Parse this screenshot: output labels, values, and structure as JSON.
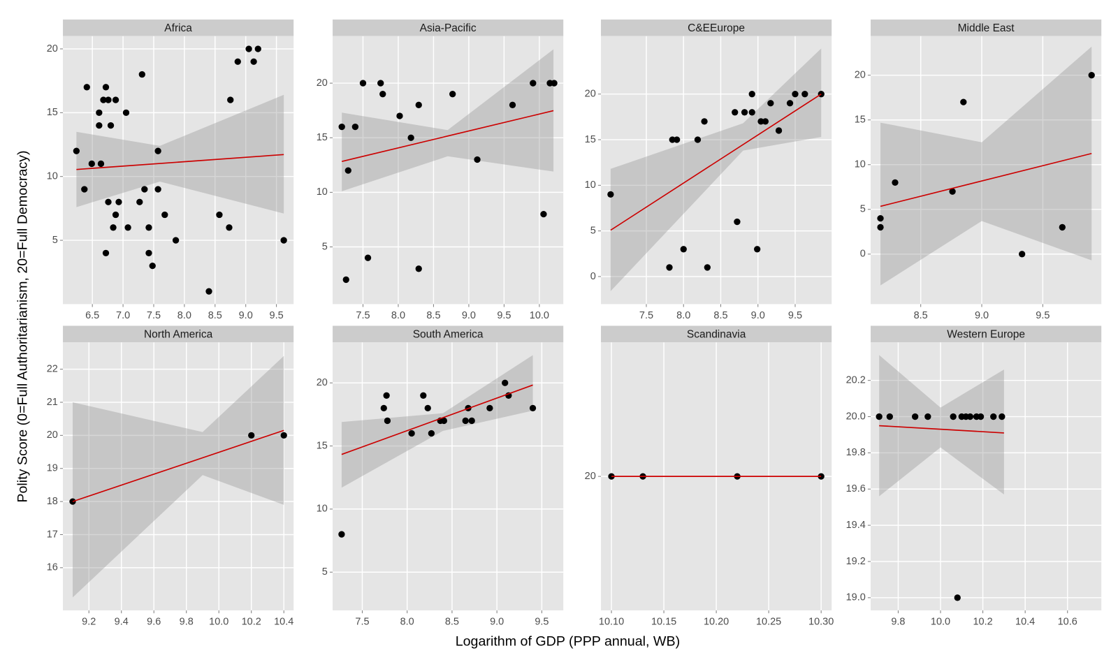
{
  "ylabel": "Polity Score (0=Full Authoritarianism, 20=Full Democracy)",
  "xlabel": "Logarithm of GDP (PPP annual, WB)",
  "chart_data": [
    {
      "type": "scatter",
      "title": "Africa",
      "color": "#000000",
      "x": [
        6.24,
        6.37,
        6.41,
        6.49,
        6.61,
        6.61,
        6.64,
        6.68,
        6.72,
        6.72,
        6.76,
        6.76,
        6.8,
        6.84,
        6.88,
        6.88,
        6.93,
        7.05,
        7.08,
        7.27,
        7.31,
        7.35,
        7.42,
        7.42,
        7.48,
        7.57,
        7.57,
        7.68,
        7.86,
        8.4,
        8.57,
        8.73,
        8.75,
        8.87,
        9.05,
        9.13,
        9.2,
        9.62
      ],
      "values": [
        12,
        9,
        17,
        11,
        15,
        14,
        11,
        16,
        17,
        4,
        16,
        8,
        14,
        6,
        7,
        16,
        8,
        15,
        6,
        8,
        18,
        9,
        6,
        4,
        3,
        12,
        9,
        7,
        5,
        1,
        7,
        6,
        16,
        19,
        20,
        19,
        20,
        5
      ],
      "fit": {
        "color": "#cc0000",
        "x": [
          6.24,
          9.62
        ],
        "y": [
          10.55,
          11.72
        ]
      },
      "band": {
        "x": [
          6.24,
          7.6,
          9.62
        ],
        "lower": [
          7.6,
          9.6,
          7.1
        ],
        "upper": [
          13.5,
          12.4,
          16.4
        ]
      },
      "xlim": [
        6.02,
        9.78
      ],
      "ylim": [
        0,
        21
      ],
      "xticks": [
        6.5,
        {
          "value": 7,
          "label": "7.0"
        },
        7.5,
        {
          "value": 8,
          "label": "8.0"
        },
        8.5,
        {
          "value": 9,
          "label": "9.0"
        },
        9.5
      ],
      "yticks": [
        5,
        10,
        15,
        20
      ]
    },
    {
      "type": "scatter",
      "title": "Asia-Pacific",
      "color": "#000000",
      "x": [
        7.2,
        7.26,
        7.29,
        7.39,
        7.5,
        7.57,
        7.75,
        7.78,
        8.02,
        8.18,
        8.29,
        8.29,
        8.77,
        9.12,
        9.62,
        9.91,
        10.06,
        10.15,
        10.21
      ],
      "values": [
        16,
        2,
        12,
        16,
        20,
        4,
        20,
        19,
        17,
        15,
        18,
        3,
        19,
        13,
        18,
        20,
        8,
        20,
        20
      ],
      "fit": {
        "color": "#cc0000",
        "x": [
          7.2,
          10.2
        ],
        "y": [
          12.83,
          17.48
        ]
      },
      "band": {
        "x": [
          7.2,
          8.7,
          10.2
        ],
        "lower": [
          10.1,
          13.3,
          11.9
        ],
        "upper": [
          17.3,
          15.7,
          23.1
        ]
      },
      "xlim": [
        7.07,
        10.34
      ],
      "ylim": [
        -0.24,
        24.31
      ],
      "xticks": [
        7.5,
        {
          "value": 8,
          "label": "8.0"
        },
        8.5,
        {
          "value": 9,
          "label": "9.0"
        },
        9.5,
        {
          "value": 10,
          "label": "10.0"
        }
      ],
      "yticks": [
        5,
        10,
        15,
        20
      ]
    },
    {
      "type": "scatter",
      "title": "C&EEurope",
      "color": "#000000",
      "x": [
        7.02,
        7.81,
        7.85,
        7.91,
        8.0,
        8.19,
        8.28,
        8.32,
        8.69,
        8.72,
        8.82,
        8.92,
        8.92,
        8.99,
        9.04,
        9.1,
        9.17,
        9.28,
        9.43,
        9.5,
        9.63,
        9.85
      ],
      "values": [
        9,
        1,
        15,
        15,
        3,
        15,
        17,
        1,
        18,
        6,
        18,
        20,
        18,
        3,
        17,
        17,
        19,
        16,
        19,
        20,
        20,
        20
      ],
      "fit": {
        "color": "#cc0000",
        "x": [
          7.02,
          9.85
        ],
        "y": [
          5.08,
          20
        ]
      },
      "band": {
        "x": [
          7.02,
          8.8,
          9.85
        ],
        "lower": [
          -1.6,
          13.8,
          15.3
        ],
        "upper": [
          11.8,
          16.8,
          25
        ]
      },
      "xlim": [
        6.89,
        9.99
      ],
      "ylim": [
        -3.02,
        26.35
      ],
      "xticks": [
        7.5,
        {
          "value": 8,
          "label": "8.0"
        },
        8.5,
        {
          "value": 9,
          "label": "9.0"
        },
        9.5
      ],
      "yticks": [
        0,
        5,
        10,
        15,
        20
      ]
    },
    {
      "type": "scatter",
      "title": "Middle East",
      "color": "#000000",
      "x": [
        8.17,
        8.17,
        8.29,
        8.76,
        8.85,
        9.33,
        9.66,
        9.9
      ],
      "values": [
        4,
        3,
        8,
        7,
        17,
        0,
        3,
        20
      ],
      "fit": {
        "color": "#cc0000",
        "x": [
          8.17,
          9.9
        ],
        "y": [
          5.34,
          11.25
        ]
      },
      "band": {
        "x": [
          8.17,
          9,
          9.9
        ],
        "lower": [
          -3.5,
          3.7,
          -0.7
        ],
        "upper": [
          14.7,
          12.5,
          23.2
        ]
      },
      "xlim": [
        8.09,
        9.98
      ],
      "ylim": [
        -5.59,
        24.37
      ],
      "xticks": [
        8.5,
        {
          "value": 9,
          "label": "9.0"
        },
        9.5
      ],
      "yticks": [
        0,
        5,
        10,
        15,
        20
      ]
    },
    {
      "type": "scatter",
      "title": "North America",
      "color": "#000000",
      "x": [
        9.1,
        10.2,
        10.4
      ],
      "values": [
        18,
        20,
        20
      ],
      "fit": {
        "color": "#cc0000",
        "x": [
          9.1,
          10.4
        ],
        "y": [
          18,
          20.15
        ]
      },
      "band": {
        "x": [
          9.1,
          9.9,
          10.4
        ],
        "lower": [
          15.1,
          18.8,
          17.9
        ],
        "upper": [
          21,
          20.1,
          22.4
        ]
      },
      "xlim": [
        9.04,
        10.46
      ],
      "ylim": [
        14.71,
        22.81
      ],
      "xticks": [
        9.2,
        9.4,
        9.6,
        9.8,
        {
          "value": 10,
          "label": "10.0"
        },
        10.2,
        10.4
      ],
      "yticks": [
        16,
        17,
        18,
        19,
        20,
        21,
        22
      ]
    },
    {
      "type": "scatter",
      "title": "South America",
      "color": "#000000",
      "x": [
        7.27,
        7.74,
        7.77,
        7.78,
        8.05,
        8.18,
        8.23,
        8.27,
        8.37,
        8.41,
        8.65,
        8.68,
        8.72,
        8.92,
        9.09,
        9.13,
        9.4
      ],
      "values": [
        8,
        18,
        19,
        17,
        16,
        19,
        18,
        16,
        17,
        17,
        17,
        18,
        17,
        18,
        20,
        19,
        18
      ],
      "fit": {
        "color": "#cc0000",
        "x": [
          7.27,
          9.4
        ],
        "y": [
          14.33,
          19.83
        ]
      },
      "band": {
        "x": [
          7.27,
          8.4,
          9.4
        ],
        "lower": [
          11.7,
          16.2,
          17.8
        ],
        "upper": [
          16.9,
          17.6,
          22.2
        ]
      },
      "xlim": [
        7.17,
        9.74
      ],
      "ylim": [
        1.97,
        23.21
      ],
      "xticks": [
        7.5,
        {
          "value": 8,
          "label": "8.0"
        },
        8.5,
        {
          "value": 9,
          "label": "9.0"
        },
        9.5
      ],
      "yticks": [
        5,
        10,
        15,
        20
      ]
    },
    {
      "type": "scatter",
      "title": "Scandinavia",
      "color": "#000000",
      "x": [
        10.1,
        10.13,
        10.22,
        10.3
      ],
      "values": [
        20,
        20,
        20,
        20
      ],
      "fit": {
        "color": "#cc0000",
        "x": [
          10.1,
          10.3
        ],
        "y": [
          20,
          20
        ]
      },
      "xlim": [
        10.09,
        10.31
      ],
      "ylim": [
        19.95,
        20.05
      ],
      "xticks": [
        {
          "value": 10.1,
          "label": "10.10"
        },
        10.15,
        {
          "value": 10.2,
          "label": "10.20"
        },
        10.25,
        {
          "value": 10.3,
          "label": "10.30"
        }
      ],
      "yticks": [
        20
      ]
    },
    {
      "type": "scatter",
      "title": "Western Europe",
      "color": "#000000",
      "x": [
        9.71,
        9.76,
        9.88,
        9.94,
        10.06,
        10.1,
        10.12,
        10.14,
        10.17,
        10.19,
        10.25,
        10.29,
        10.08
      ],
      "values": [
        20,
        20,
        20,
        20,
        20,
        20,
        20,
        20,
        20,
        20,
        20,
        20,
        19
      ],
      "fit": {
        "color": "#cc0000",
        "x": [
          9.71,
          10.3
        ],
        "y": [
          19.95,
          19.91
        ]
      },
      "band": {
        "x": [
          9.71,
          10,
          10.3
        ],
        "lower": [
          19.56,
          19.83,
          19.57
        ],
        "upper": [
          20.34,
          20.05,
          20.26
        ]
      },
      "xlim": [
        9.67,
        10.76
      ],
      "ylim": [
        18.93,
        20.41
      ],
      "xticks": [
        9.8,
        {
          "value": 10,
          "label": "10.0"
        },
        10.2,
        10.4,
        10.6
      ],
      "yticks": [
        {
          "value": 19,
          "label": "19.0"
        },
        19.2,
        19.4,
        19.6,
        19.8,
        {
          "value": 20,
          "label": "20.0"
        },
        20.2
      ]
    }
  ]
}
